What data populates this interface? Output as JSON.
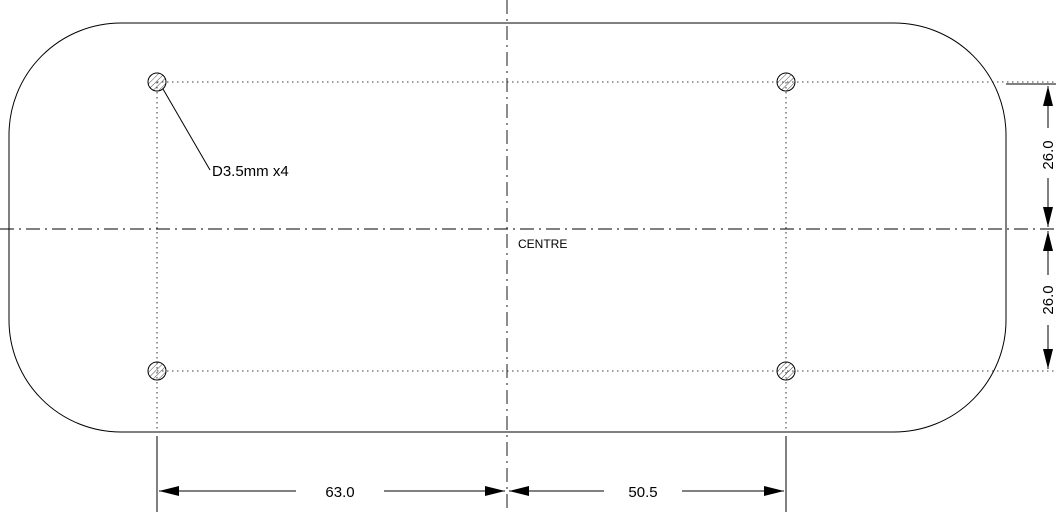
{
  "labels": {
    "hole_callout": "D3.5mm x4",
    "centre": "CENTRE",
    "dim_left": "63.0",
    "dim_right": "50.5",
    "dim_top": "26.0",
    "dim_bottom": "26.0"
  },
  "colors": {
    "line": "#000000",
    "background": "#ffffff"
  }
}
